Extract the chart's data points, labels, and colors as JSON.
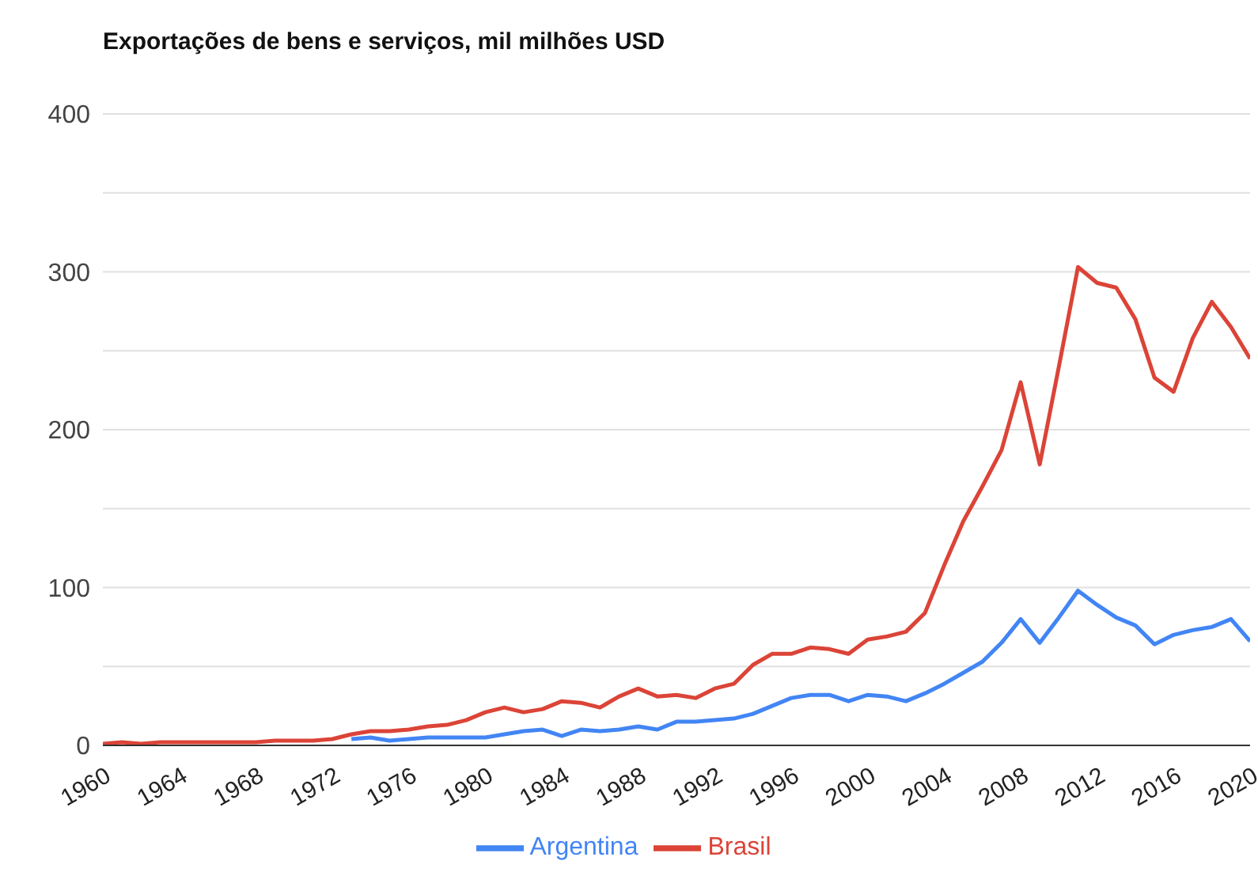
{
  "chart_data": {
    "type": "line",
    "title": "Exportações de bens e serviços, mil milhões USD",
    "x": [
      1960,
      1961,
      1962,
      1963,
      1964,
      1965,
      1966,
      1967,
      1968,
      1969,
      1970,
      1971,
      1972,
      1973,
      1974,
      1975,
      1976,
      1977,
      1978,
      1979,
      1980,
      1981,
      1982,
      1983,
      1984,
      1985,
      1986,
      1987,
      1988,
      1989,
      1990,
      1991,
      1992,
      1993,
      1994,
      1995,
      1996,
      1997,
      1998,
      1999,
      2000,
      2001,
      2002,
      2003,
      2004,
      2005,
      2006,
      2007,
      2008,
      2009,
      2010,
      2011,
      2012,
      2013,
      2014,
      2015,
      2016,
      2017,
      2018,
      2019,
      2020
    ],
    "series": [
      {
        "name": "Argentina",
        "color": "#4285f4",
        "values": [
          null,
          null,
          null,
          null,
          null,
          null,
          null,
          null,
          null,
          null,
          null,
          null,
          null,
          4,
          5,
          3,
          4,
          5,
          5,
          5,
          5,
          7,
          9,
          10,
          6,
          10,
          9,
          10,
          12,
          10,
          15,
          15,
          16,
          17,
          20,
          25,
          30,
          32,
          32,
          28,
          32,
          31,
          28,
          33,
          39,
          46,
          53,
          65,
          80,
          65,
          81,
          98,
          89,
          81,
          76,
          64,
          70,
          73,
          75,
          80,
          66
        ]
      },
      {
        "name": "Brasil",
        "color": "#db4437",
        "values": [
          1,
          2,
          1,
          2,
          2,
          2,
          2,
          2,
          2,
          3,
          3,
          3,
          4,
          7,
          9,
          9,
          10,
          12,
          13,
          16,
          21,
          24,
          21,
          23,
          28,
          27,
          24,
          31,
          36,
          31,
          32,
          30,
          36,
          39,
          51,
          58,
          58,
          62,
          61,
          58,
          67,
          69,
          72,
          84,
          114,
          142,
          164,
          187,
          230,
          178,
          240,
          303,
          293,
          290,
          270,
          233,
          224,
          258,
          281,
          265,
          245
        ]
      }
    ],
    "xlim": [
      1960,
      2020
    ],
    "xticks": [
      1960,
      1964,
      1968,
      1972,
      1976,
      1980,
      1984,
      1988,
      1992,
      1996,
      2000,
      2004,
      2008,
      2012,
      2016,
      2020
    ],
    "ylim": [
      0,
      400
    ],
    "yticks": [
      0,
      {
        "value": 50,
        "label": null
      },
      100,
      {
        "value": 150,
        "label": null
      },
      200,
      {
        "value": 250,
        "label": null
      },
      300,
      {
        "value": 350,
        "label": null
      },
      400
    ],
    "grid": "y",
    "legend": "bottom",
    "marker": "none",
    "line_style": "solid"
  }
}
